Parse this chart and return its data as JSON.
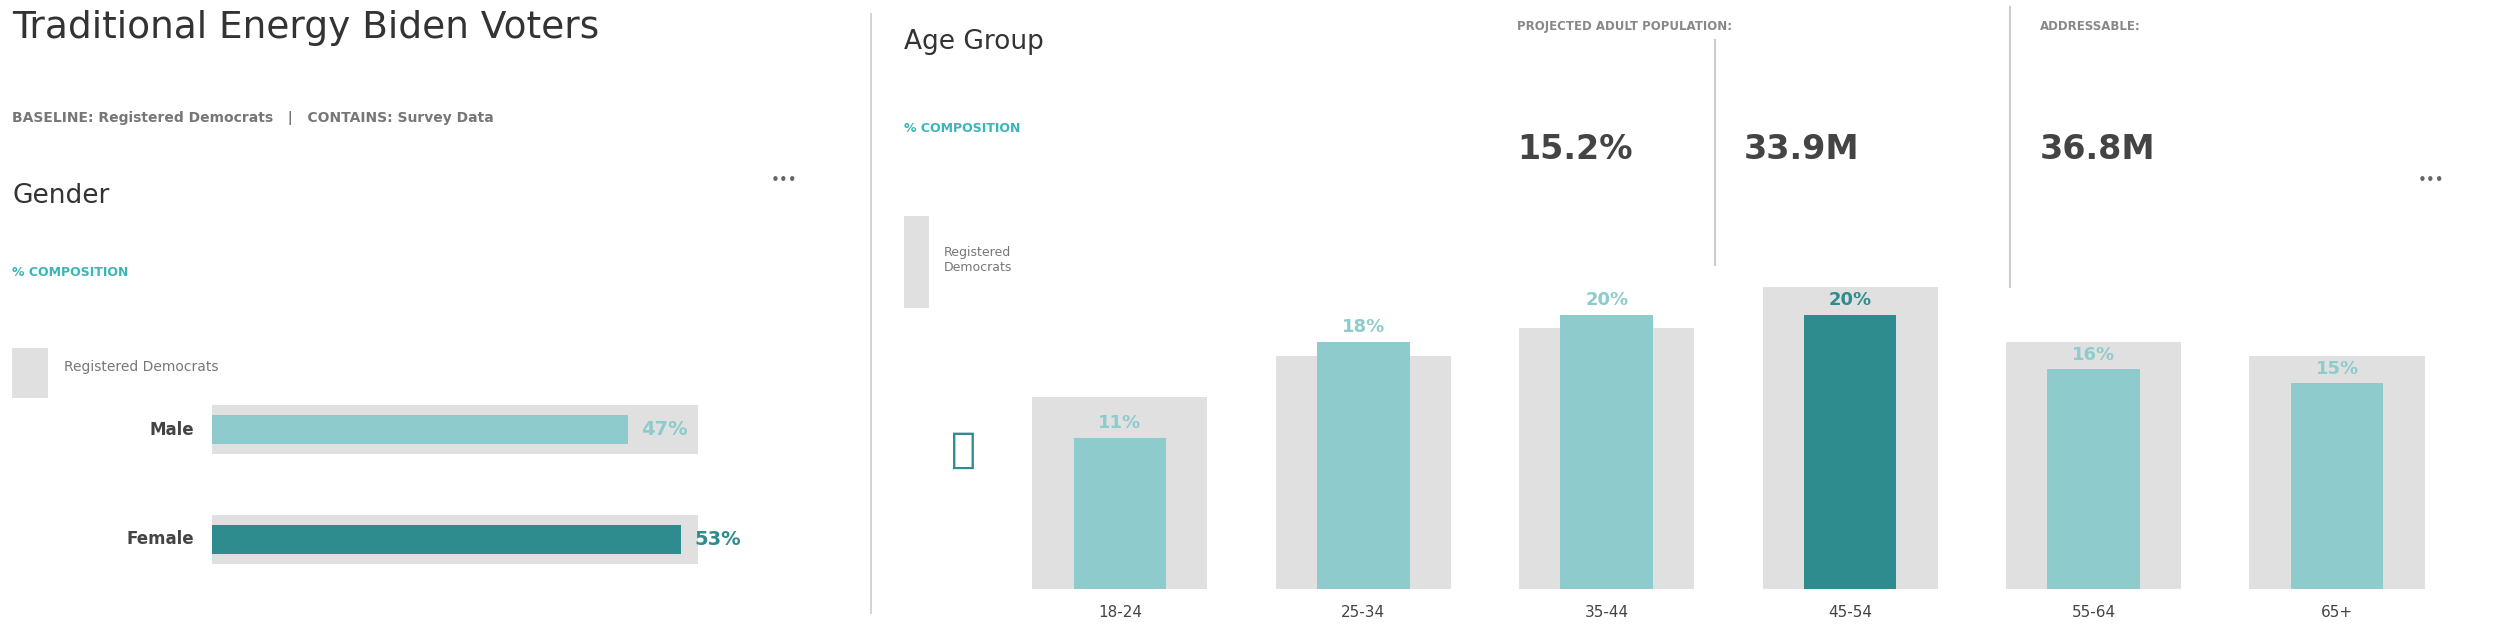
{
  "title": "Traditional Energy Biden Voters",
  "subtitle_baseline": "BASELINE: Registered Democrats",
  "subtitle_contains": "CONTAINS: Survey Data",
  "stat_label": "PROJECTED ADULT POPULATION:",
  "stat_pct": "15.2%",
  "stat_val": "33.9M",
  "addressable_label": "ADDRESSABLE:",
  "addressable_val": "36.8M",
  "gender_title": "Gender",
  "gender_metric": "% COMPOSITION",
  "gender_legend": "Registered Democrats",
  "gender_categories": [
    "Male",
    "Female"
  ],
  "gender_bg_values": [
    50,
    50
  ],
  "gender_values": [
    47,
    53
  ],
  "gender_highlight": [
    false,
    true
  ],
  "age_title": "Age Group",
  "age_metric": "% COMPOSITION",
  "age_legend": "Registered Democrats",
  "age_categories": [
    "18-24",
    "25-34",
    "35-44",
    "45-54",
    "55-64",
    "65+"
  ],
  "age_bg_values": [
    14,
    17,
    19,
    22,
    18,
    17
  ],
  "age_values": [
    11,
    18,
    20,
    20,
    16,
    15
  ],
  "age_highlight": [
    false,
    false,
    false,
    true,
    false,
    false
  ],
  "color_teal_light": "#8ecbcc",
  "color_teal_dark": "#2e8b8e",
  "color_bg_bar": "#e0e0e0",
  "color_metric": "#3ab5b8",
  "color_title": "#333333",
  "color_subtitle": "#555555",
  "color_stat_large": "#444444",
  "color_label": "#444444",
  "bg_color": "#ffffff",
  "divider_color": "#cccccc"
}
